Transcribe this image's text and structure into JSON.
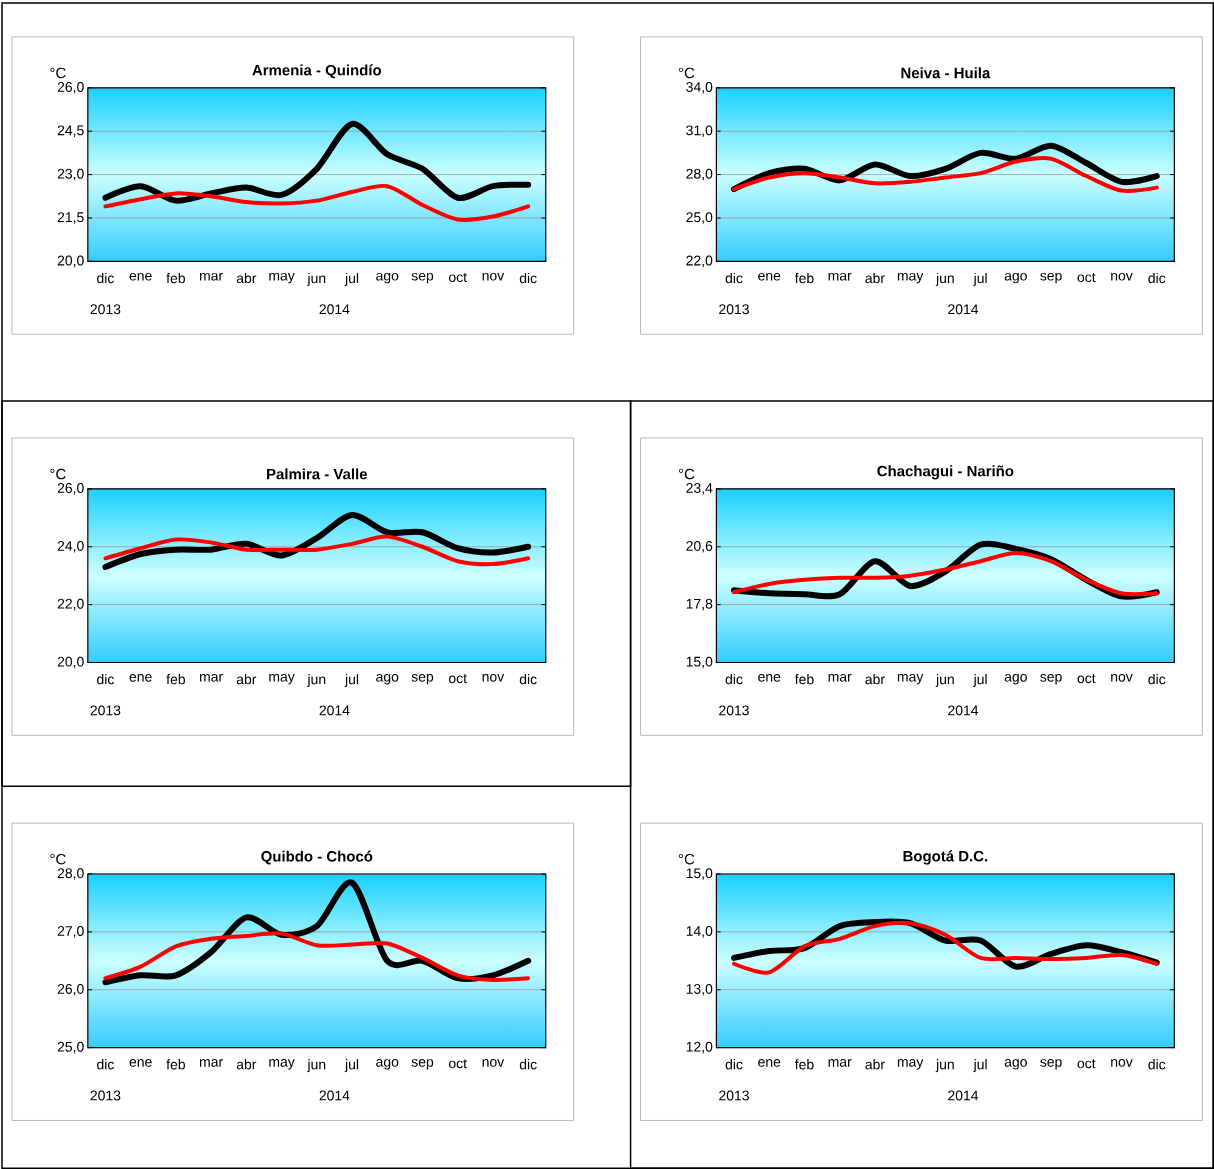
{
  "chart_data": [
    {
      "type": "line",
      "title": "Armenia - Quindío",
      "ylabel": "°C",
      "grid": "y",
      "categories": [
        "dic",
        "ene",
        "feb",
        "mar",
        "abr",
        "may",
        "jun",
        "jul",
        "ago",
        "sep",
        "oct",
        "nov",
        "dic"
      ],
      "annotations": [
        "2013",
        "2014"
      ],
      "ylim": [
        20,
        26
      ],
      "yticks": [
        {
          "value": 20,
          "label": "20,0"
        },
        {
          "value": 21.5,
          "label": "21,5"
        },
        {
          "value": 23,
          "label": "23,0"
        },
        {
          "value": 24.5,
          "label": "24,5"
        },
        {
          "value": 26,
          "label": "26,0"
        }
      ],
      "series": [
        {
          "color": "#000000",
          "values": [
            22.2,
            22.6,
            22.1,
            22.35,
            22.55,
            22.3,
            23.2,
            24.75,
            23.7,
            23.2,
            22.2,
            22.6,
            22.65
          ]
        },
        {
          "color": "#ff0000",
          "values": [
            21.9,
            22.15,
            22.35,
            22.25,
            22.05,
            22.0,
            22.1,
            22.4,
            22.6,
            21.95,
            21.45,
            21.55,
            21.9
          ]
        }
      ]
    },
    {
      "type": "line",
      "title": "Neiva - Huila",
      "ylabel": "°C",
      "grid": "y",
      "categories": [
        "dic",
        "ene",
        "feb",
        "mar",
        "abr",
        "may",
        "jun",
        "jul",
        "ago",
        "sep",
        "oct",
        "nov",
        "dic"
      ],
      "annotations": [
        "2013",
        "2014"
      ],
      "ylim": [
        22,
        34
      ],
      "yticks": [
        {
          "value": 22,
          "label": "22,0"
        },
        {
          "value": 25,
          "label": "25,0"
        },
        {
          "value": 28,
          "label": "28,0"
        },
        {
          "value": 31,
          "label": "31,0"
        },
        {
          "value": 34,
          "label": "34,0"
        }
      ],
      "series": [
        {
          "color": "#000000",
          "values": [
            27.0,
            28.1,
            28.4,
            27.6,
            28.7,
            27.9,
            28.4,
            29.5,
            29.1,
            30.0,
            28.8,
            27.5,
            27.9
          ]
        },
        {
          "color": "#ff0000",
          "values": [
            27.0,
            27.8,
            28.1,
            27.8,
            27.4,
            27.5,
            27.8,
            28.1,
            28.9,
            29.1,
            27.9,
            26.9,
            27.1
          ]
        }
      ]
    },
    {
      "type": "line",
      "title": "Palmira - Valle",
      "ylabel": "°C",
      "grid": "y",
      "categories": [
        "dic",
        "ene",
        "feb",
        "mar",
        "abr",
        "may",
        "jun",
        "jul",
        "ago",
        "sep",
        "oct",
        "nov",
        "dic"
      ],
      "annotations": [
        "2013",
        "2014"
      ],
      "ylim": [
        20,
        26
      ],
      "yticks": [
        {
          "value": 20,
          "label": "20,0"
        },
        {
          "value": 22,
          "label": "22,0"
        },
        {
          "value": 24,
          "label": "24,0"
        },
        {
          "value": 26,
          "label": "26,0"
        }
      ],
      "series": [
        {
          "color": "#000000",
          "values": [
            23.3,
            23.75,
            23.9,
            23.9,
            24.1,
            23.7,
            24.3,
            25.1,
            24.5,
            24.5,
            23.95,
            23.8,
            24.0
          ]
        },
        {
          "color": "#ff0000",
          "values": [
            23.6,
            23.95,
            24.25,
            24.15,
            23.9,
            23.9,
            23.9,
            24.1,
            24.35,
            24.0,
            23.5,
            23.4,
            23.6
          ]
        }
      ]
    },
    {
      "type": "line",
      "title": "Chachagui - Nariño",
      "ylabel": "°C",
      "grid": "y",
      "categories": [
        "dic",
        "ene",
        "feb",
        "mar",
        "abr",
        "may",
        "jun",
        "jul",
        "ago",
        "sep",
        "oct",
        "nov",
        "dic"
      ],
      "annotations": [
        "2013",
        "2014"
      ],
      "ylim": [
        15,
        23.4
      ],
      "yticks": [
        {
          "value": 15,
          "label": "15,0"
        },
        {
          "value": 17.8,
          "label": "17,8"
        },
        {
          "value": 20.6,
          "label": "20,6"
        },
        {
          "value": 23.4,
          "label": "23,4"
        }
      ],
      "series": [
        {
          "color": "#000000",
          "values": [
            18.5,
            18.35,
            18.3,
            18.3,
            19.9,
            18.7,
            19.4,
            20.7,
            20.5,
            20.0,
            19.0,
            18.2,
            18.4
          ]
        },
        {
          "color": "#ff0000",
          "values": [
            18.4,
            18.8,
            19.0,
            19.1,
            19.1,
            19.2,
            19.5,
            19.9,
            20.3,
            19.9,
            19.0,
            18.35,
            18.35
          ]
        }
      ]
    },
    {
      "type": "line",
      "title": "Quibdo - Chocó",
      "ylabel": "°C",
      "grid": "y",
      "categories": [
        "dic",
        "ene",
        "feb",
        "mar",
        "abr",
        "may",
        "jun",
        "jul",
        "ago",
        "sep",
        "oct",
        "nov",
        "dic"
      ],
      "annotations": [
        "2013",
        "2014"
      ],
      "ylim": [
        25,
        28
      ],
      "yticks": [
        {
          "value": 25,
          "label": "25,0"
        },
        {
          "value": 26,
          "label": "26,0"
        },
        {
          "value": 27,
          "label": "27,0"
        },
        {
          "value": 28,
          "label": "28,0"
        }
      ],
      "series": [
        {
          "color": "#000000",
          "values": [
            26.13,
            26.25,
            26.25,
            26.65,
            27.25,
            26.95,
            27.1,
            27.85,
            26.5,
            26.5,
            26.2,
            26.25,
            26.5
          ]
        },
        {
          "color": "#ff0000",
          "values": [
            26.2,
            26.4,
            26.75,
            26.88,
            26.93,
            26.97,
            26.77,
            26.78,
            26.8,
            26.55,
            26.25,
            26.17,
            26.2
          ]
        }
      ]
    },
    {
      "type": "line",
      "title": "Bogotá D.C.",
      "ylabel": "°C",
      "grid": "y",
      "categories": [
        "dic",
        "ene",
        "feb",
        "mar",
        "abr",
        "may",
        "jun",
        "jul",
        "ago",
        "sep",
        "oct",
        "nov",
        "dic"
      ],
      "annotations": [
        "2013",
        "2014"
      ],
      "ylim": [
        12,
        15
      ],
      "yticks": [
        {
          "value": 12,
          "label": "12,0"
        },
        {
          "value": 13,
          "label": "13,0"
        },
        {
          "value": 14,
          "label": "14,0"
        },
        {
          "value": 15,
          "label": "15,0"
        }
      ],
      "series": [
        {
          "color": "#000000",
          "values": [
            13.55,
            13.67,
            13.72,
            14.1,
            14.17,
            14.15,
            13.85,
            13.85,
            13.4,
            13.62,
            13.77,
            13.65,
            13.47
          ]
        },
        {
          "color": "#ff0000",
          "values": [
            13.45,
            13.3,
            13.75,
            13.88,
            14.1,
            14.15,
            13.95,
            13.55,
            13.55,
            13.53,
            13.55,
            13.6,
            13.45
          ]
        }
      ]
    }
  ]
}
